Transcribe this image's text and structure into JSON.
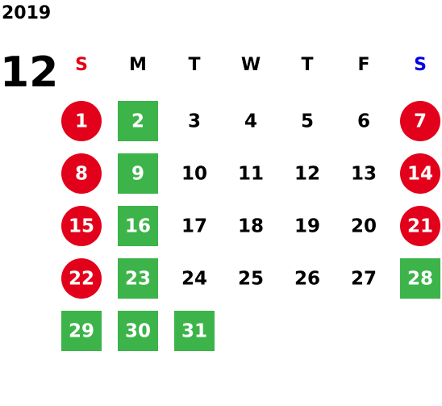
{
  "year": "2019",
  "month": "12",
  "weekdays": [
    {
      "label": "S",
      "color": "#e60012"
    },
    {
      "label": "M",
      "color": "#000000"
    },
    {
      "label": "T",
      "color": "#000000"
    },
    {
      "label": "W",
      "color": "#000000"
    },
    {
      "label": "T",
      "color": "#000000"
    },
    {
      "label": "F",
      "color": "#000000"
    },
    {
      "label": "S",
      "color": "#0000e6"
    }
  ],
  "weeks": [
    [
      {
        "day": "1",
        "mark": "circle",
        "color": "#e2001a"
      },
      {
        "day": "2",
        "mark": "square",
        "color": "#3cb44a"
      },
      {
        "day": "3"
      },
      {
        "day": "4"
      },
      {
        "day": "5"
      },
      {
        "day": "6"
      },
      {
        "day": "7",
        "mark": "circle",
        "color": "#e2001a"
      }
    ],
    [
      {
        "day": "8",
        "mark": "circle",
        "color": "#e2001a"
      },
      {
        "day": "9",
        "mark": "square",
        "color": "#3cb44a"
      },
      {
        "day": "10"
      },
      {
        "day": "11"
      },
      {
        "day": "12"
      },
      {
        "day": "13"
      },
      {
        "day": "14",
        "mark": "circle",
        "color": "#e2001a"
      }
    ],
    [
      {
        "day": "15",
        "mark": "circle",
        "color": "#e2001a"
      },
      {
        "day": "16",
        "mark": "square",
        "color": "#3cb44a"
      },
      {
        "day": "17"
      },
      {
        "day": "18"
      },
      {
        "day": "19"
      },
      {
        "day": "20"
      },
      {
        "day": "21",
        "mark": "circle",
        "color": "#e2001a"
      }
    ],
    [
      {
        "day": "22",
        "mark": "circle",
        "color": "#e2001a"
      },
      {
        "day": "23",
        "mark": "square",
        "color": "#3cb44a"
      },
      {
        "day": "24"
      },
      {
        "day": "25"
      },
      {
        "day": "26"
      },
      {
        "day": "27"
      },
      {
        "day": "28",
        "mark": "square",
        "color": "#3cb44a"
      }
    ],
    [
      {
        "day": "29",
        "mark": "square",
        "color": "#3cb44a"
      },
      {
        "day": "30",
        "mark": "square",
        "color": "#3cb44a"
      },
      {
        "day": "31",
        "mark": "square",
        "color": "#3cb44a"
      },
      null,
      null,
      null,
      null
    ]
  ]
}
